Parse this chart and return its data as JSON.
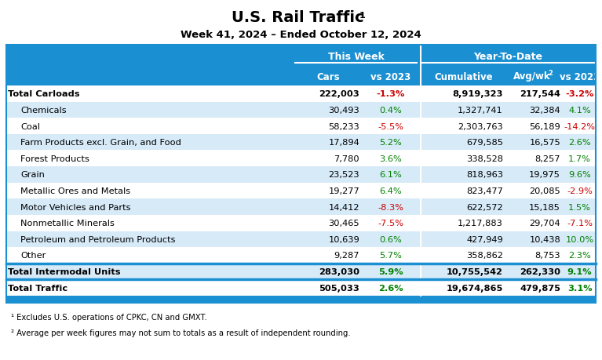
{
  "title": "U.S. Rail Traffic",
  "title_super": "1",
  "subtitle": "Week 41, 2024 – Ended October 12, 2024",
  "header_group1": "This Week",
  "header_group2": "Year-To-Date",
  "rows": [
    {
      "label": "Total Carloads",
      "bold": true,
      "indent": false,
      "sep_before": false,
      "cars": "222,003",
      "vs_tw": "-1.3%",
      "cumul": "8,919,323",
      "avgwk": "217,544",
      "vs_ytd": "-3.2%",
      "vs_tw_neg": true,
      "vs_ytd_neg": true
    },
    {
      "label": "Chemicals",
      "bold": false,
      "indent": true,
      "sep_before": false,
      "cars": "30,493",
      "vs_tw": "0.4%",
      "cumul": "1,327,741",
      "avgwk": "32,384",
      "vs_ytd": "4.1%",
      "vs_tw_neg": false,
      "vs_ytd_neg": false
    },
    {
      "label": "Coal",
      "bold": false,
      "indent": true,
      "sep_before": false,
      "cars": "58,233",
      "vs_tw": "-5.5%",
      "cumul": "2,303,763",
      "avgwk": "56,189",
      "vs_ytd": "-14.2%",
      "vs_tw_neg": true,
      "vs_ytd_neg": true
    },
    {
      "label": "Farm Products excl. Grain, and Food",
      "bold": false,
      "indent": true,
      "sep_before": false,
      "cars": "17,894",
      "vs_tw": "5.2%",
      "cumul": "679,585",
      "avgwk": "16,575",
      "vs_ytd": "2.6%",
      "vs_tw_neg": false,
      "vs_ytd_neg": false
    },
    {
      "label": "Forest Products",
      "bold": false,
      "indent": true,
      "sep_before": false,
      "cars": "7,780",
      "vs_tw": "3.6%",
      "cumul": "338,528",
      "avgwk": "8,257",
      "vs_ytd": "1.7%",
      "vs_tw_neg": false,
      "vs_ytd_neg": false
    },
    {
      "label": "Grain",
      "bold": false,
      "indent": true,
      "sep_before": false,
      "cars": "23,523",
      "vs_tw": "6.1%",
      "cumul": "818,963",
      "avgwk": "19,975",
      "vs_ytd": "9.6%",
      "vs_tw_neg": false,
      "vs_ytd_neg": false
    },
    {
      "label": "Metallic Ores and Metals",
      "bold": false,
      "indent": true,
      "sep_before": false,
      "cars": "19,277",
      "vs_tw": "6.4%",
      "cumul": "823,477",
      "avgwk": "20,085",
      "vs_ytd": "-2.9%",
      "vs_tw_neg": false,
      "vs_ytd_neg": true
    },
    {
      "label": "Motor Vehicles and Parts",
      "bold": false,
      "indent": true,
      "sep_before": false,
      "cars": "14,412",
      "vs_tw": "-8.3%",
      "cumul": "622,572",
      "avgwk": "15,185",
      "vs_ytd": "1.5%",
      "vs_tw_neg": true,
      "vs_ytd_neg": false
    },
    {
      "label": "Nonmetallic Minerals",
      "bold": false,
      "indent": true,
      "sep_before": false,
      "cars": "30,465",
      "vs_tw": "-7.5%",
      "cumul": "1,217,883",
      "avgwk": "29,704",
      "vs_ytd": "-7.1%",
      "vs_tw_neg": true,
      "vs_ytd_neg": true
    },
    {
      "label": "Petroleum and Petroleum Products",
      "bold": false,
      "indent": true,
      "sep_before": false,
      "cars": "10,639",
      "vs_tw": "0.6%",
      "cumul": "427,949",
      "avgwk": "10,438",
      "vs_ytd": "10.0%",
      "vs_tw_neg": false,
      "vs_ytd_neg": false
    },
    {
      "label": "Other",
      "bold": false,
      "indent": true,
      "sep_before": false,
      "cars": "9,287",
      "vs_tw": "5.7%",
      "cumul": "358,862",
      "avgwk": "8,753",
      "vs_ytd": "2.3%",
      "vs_tw_neg": false,
      "vs_ytd_neg": false
    },
    {
      "label": "Total Intermodal Units",
      "bold": true,
      "indent": false,
      "sep_before": true,
      "cars": "283,030",
      "vs_tw": "5.9%",
      "cumul": "10,755,542",
      "avgwk": "262,330",
      "vs_ytd": "9.1%",
      "vs_tw_neg": false,
      "vs_ytd_neg": false
    },
    {
      "label": "Total Traffic",
      "bold": true,
      "indent": false,
      "sep_before": true,
      "cars": "505,033",
      "vs_tw": "2.6%",
      "cumul": "19,674,865",
      "avgwk": "479,875",
      "vs_ytd": "3.1%",
      "vs_tw_neg": false,
      "vs_ytd_neg": false
    }
  ],
  "footnote1": "¹ Excludes U.S. operations of CPKC, CN and GMXT.",
  "footnote2": "² Average per week figures may not sum to totals as a result of independent rounding.",
  "blue": "#1a8fd1",
  "green": "#008000",
  "red": "#cc0000",
  "white": "#ffffff",
  "black": "#000000",
  "light_blue_row": "#d6eaf8",
  "white_row": "#ffffff"
}
